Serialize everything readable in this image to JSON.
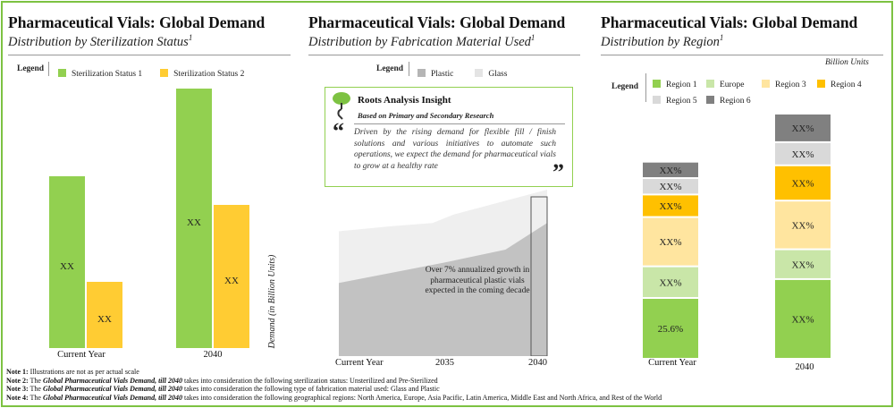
{
  "panel1": {
    "title": "Pharmaceutical Vials: Global Demand",
    "subtitle": "Distribution by Sterilization Status",
    "subtitle_sup": "1",
    "legend_label": "Legend"
  },
  "panel2": {
    "title": "Pharmaceutical Vials: Global Demand",
    "subtitle": "Distribution by Fabrication Material Used",
    "subtitle_sup": "1",
    "legend_label": "Legend",
    "insight": {
      "heading": "Roots Analysis Insight",
      "subheading": "Based on Primary and Secondary Research",
      "open_quote": "“",
      "close_quote": "”",
      "text": "Driven by the rising demand for flexible fill / finish solutions and various initiatives to automate such operations, we expect the demand for pharmaceutical vials to grow at a healthy rate"
    },
    "annotation": "Over 7% annualized growth in pharmaceutical plastic vials expected in the coming decade"
  },
  "panel3": {
    "title": "Pharmaceutical Vials: Global Demand",
    "subtitle": "Distribution by Region",
    "subtitle_sup": "1",
    "legend_label": "Legend",
    "unit_label": "Billion Units"
  },
  "notes": [
    {
      "label": "Note 1:",
      "text": " Illustrations are not as per actual scale"
    },
    {
      "label": "Note 2:",
      "text_a": " The ",
      "italic": "Global Pharmaceutical Vials Demand, till 2040",
      "text_b": " takes into consideration the following sterilization status: Unsterilized and Pre-Sterilized"
    },
    {
      "label": "Note 3:",
      "text_a": " The ",
      "italic": "Global Pharmaceutical Vials Demand, till 2040",
      "text_b": " takes into consideration the following type of fabrication material used: Glass and Plastic"
    },
    {
      "label": "Note 4:",
      "text_a": " The ",
      "italic": "Global Pharmaceutical Vials Demand, till 2040",
      "text_b": " takes into consideration the following geographical regions: North America, Europe, Asia Pacific, Latin America, Middle East and North Africa, and Rest of the World"
    }
  ],
  "chart_data": [
    {
      "type": "bar",
      "categories": [
        "Current Year",
        "2040"
      ],
      "series": [
        {
          "name": "Sterilization Status 1",
          "color": "#92d050",
          "values": [
            1.0,
            1.49
          ],
          "labels": [
            "XX",
            "XX"
          ]
        },
        {
          "name": "Sterilization Status 2",
          "color": "#ffcc33",
          "values": [
            0.41,
            0.84
          ],
          "labels": [
            "XX",
            "XX"
          ]
        }
      ],
      "value_unit": "relative (illustrative, not to scale)"
    },
    {
      "type": "area",
      "x": [
        "Current Year",
        "2035",
        "2040"
      ],
      "ylabel": "Demand (in Billion Units)",
      "series": [
        {
          "name": "Plastic",
          "color": "#c0c0c0",
          "points": [
            [
              0,
              0.44
            ],
            [
              0.5,
              0.56
            ],
            [
              0.8,
              0.64
            ],
            [
              1,
              0.8
            ]
          ]
        },
        {
          "name": "Glass",
          "color": "#efefef",
          "points": [
            [
              0,
              0.75
            ],
            [
              0.25,
              0.78
            ],
            [
              0.45,
              0.8
            ],
            [
              0.55,
              0.85
            ],
            [
              1,
              1.0
            ]
          ]
        }
      ],
      "value_unit": "relative (illustrative, not to scale)"
    },
    {
      "type": "bar",
      "stacked": true,
      "categories": [
        "Current Year",
        "2040"
      ],
      "series": [
        {
          "name": "Region 1",
          "color": "#92d050",
          "values": [
            1.0,
            1.31
          ],
          "labels": [
            "25.6%",
            "XX%"
          ]
        },
        {
          "name": "Europe",
          "color": "#c9e6a8",
          "values": [
            0.52,
            0.49
          ],
          "labels": [
            "XX%",
            "XX%"
          ]
        },
        {
          "name": "Region 3",
          "color": "#ffe59f",
          "values": [
            0.81,
            0.8
          ],
          "labels": [
            "XX%",
            "XX%"
          ]
        },
        {
          "name": "Region 4",
          "color": "#ffc000",
          "values": [
            0.37,
            0.58
          ],
          "labels": [
            "XX%",
            "XX%"
          ]
        },
        {
          "name": "Region 5",
          "color": "#d9d9d9",
          "values": [
            0.27,
            0.38
          ],
          "labels": [
            "XX%",
            "XX%"
          ]
        },
        {
          "name": "Region 6",
          "color": "#808080",
          "values": [
            0.27,
            0.47
          ],
          "labels": [
            "XX%",
            "XX%"
          ]
        }
      ],
      "value_unit": "relative (illustrative, not to scale)"
    }
  ]
}
